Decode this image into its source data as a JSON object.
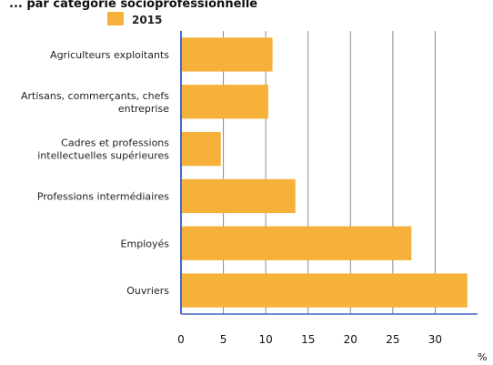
{
  "chart_data": {
    "type": "bar",
    "orientation": "horizontal",
    "title": "... par catégorie socioprofessionnelle",
    "series": [
      {
        "name": "2015",
        "values": [
          10.8,
          10.3,
          4.7,
          13.5,
          27.2,
          33.8
        ]
      }
    ],
    "categories": [
      [
        "Agriculteurs exploitants"
      ],
      [
        "Artisans, commerçants, chefs",
        "entreprise"
      ],
      [
        "Cadres et professions",
        "intellectuelles supérieures"
      ],
      [
        "Professions intermédiaires"
      ],
      [
        "Employés"
      ],
      [
        "Ouvriers"
      ]
    ],
    "x_ticks": [
      0,
      5,
      10,
      15,
      20,
      25,
      30
    ],
    "xlim": [
      0,
      35
    ],
    "xlabel": "%",
    "legend_position": "top",
    "grid": "vertical"
  },
  "colors": {
    "bar": "#F6B13B",
    "axis": "#4567c8",
    "grid": "#8a8a8a",
    "text": "#1f1f1f"
  }
}
